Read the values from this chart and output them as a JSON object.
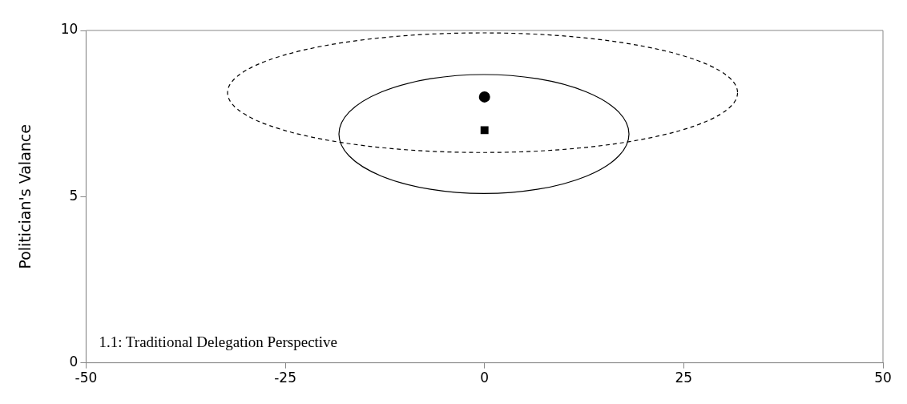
{
  "chart_data": {
    "type": "scatter",
    "ylabel": "Politician's Valance",
    "annotations": [
      "1.1: Traditional Delegation Perspective"
    ],
    "xlim": [
      -50,
      50
    ],
    "xticks": [
      -50,
      -25,
      0,
      25,
      50
    ],
    "ylim": [
      0,
      10
    ],
    "yticks": [
      0,
      5,
      10
    ],
    "grid": false,
    "legend": false,
    "series": [
      {
        "type": "scatter",
        "color": "#000000",
        "marker": "circle",
        "x": [
          0
        ],
        "values": [
          8
        ]
      },
      {
        "type": "scatter",
        "color": "#000000",
        "marker": "square",
        "x": [
          0
        ],
        "values": [
          7
        ]
      }
    ]
  }
}
